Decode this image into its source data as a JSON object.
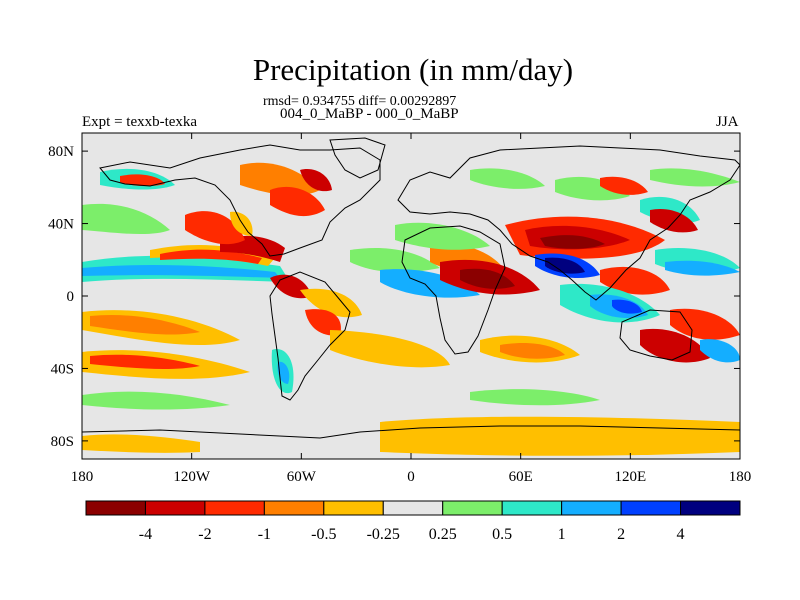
{
  "header": {
    "title": "Precipitation (in mm/day)",
    "stats_line": "rmsd= 0.934755 diff= 0.00292897",
    "subtitle": "004_0_MaBP - 000_0_MaBP",
    "left_label": "Expt = texxb-texka",
    "right_label": "JJA"
  },
  "colors": {
    "land_outline": "#000000",
    "neutral_fill": "#e6e6e6"
  },
  "chart_data": {
    "type": "heatmap",
    "title": "Precipitation (in mm/day)",
    "variable": "Precipitation difference",
    "units": "mm/day",
    "season": "JJA",
    "experiment": "texxb-texka",
    "comparison": "004_0_MaBP - 000_0_MaBP",
    "rmsd": 0.934755,
    "diff": 0.00292897,
    "x_axis": {
      "range": [
        -180,
        180
      ],
      "ticks": [
        -180,
        -120,
        -60,
        0,
        60,
        120,
        180
      ],
      "tick_labels": [
        "180",
        "120W",
        "60W",
        "0",
        "60E",
        "120E",
        "180"
      ]
    },
    "y_axis": {
      "range": [
        -90,
        90
      ],
      "ticks": [
        80,
        40,
        0,
        -40,
        -80
      ],
      "tick_labels": [
        "80N",
        "40N",
        "0",
        "40S",
        "80S"
      ]
    },
    "colorbar": {
      "labels": [
        "-4",
        "-2",
        "-1",
        "-0.5",
        "-0.25",
        "0.25",
        "0.5",
        "1",
        "2",
        "4"
      ],
      "colors": [
        "#8b0000",
        "#cc0000",
        "#ff2a00",
        "#ff7f00",
        "#ffbf00",
        "#e6e6e6",
        "#7cee6a",
        "#2ee8c8",
        "#14aeff",
        "#0040ff",
        "#00007f"
      ]
    }
  }
}
